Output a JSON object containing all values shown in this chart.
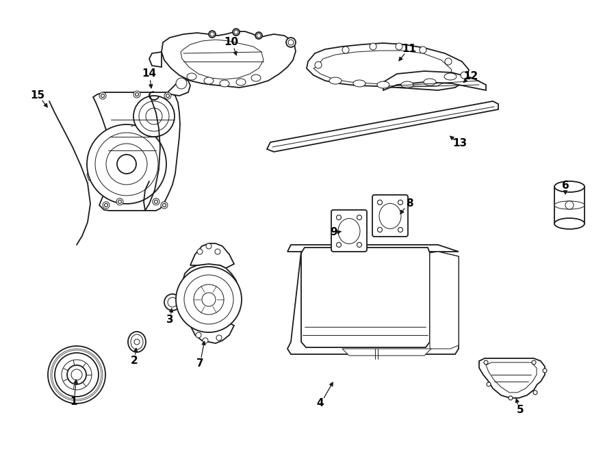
{
  "background_color": "#ffffff",
  "line_color": "#1a1a1a",
  "label_color": "#000000",
  "figsize": [
    9.0,
    6.61
  ],
  "dpi": 100,
  "lw_main": 1.3,
  "lw_thin": 0.7,
  "lw_thick": 2.0
}
